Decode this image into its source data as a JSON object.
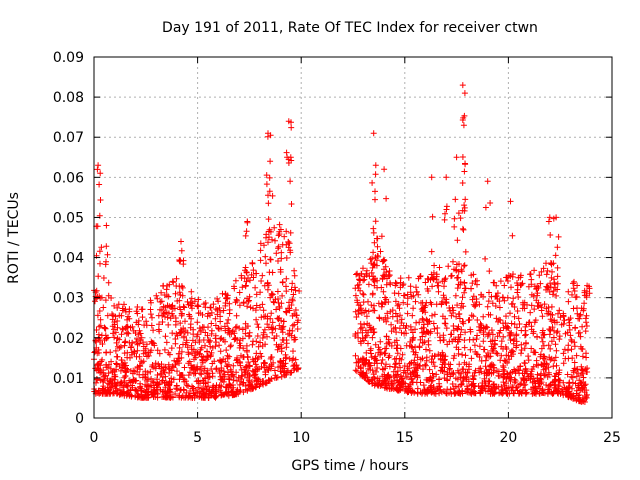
{
  "chart_data": {
    "type": "scatter",
    "title": "Day 191 of 2011, Rate Of TEC Index for receiver ctwn",
    "xlabel": "GPS time / hours",
    "ylabel": "ROTI / TECUs",
    "xlim": [
      0,
      25
    ],
    "ylim": [
      0,
      0.09
    ],
    "xticks": [
      0,
      5,
      10,
      15,
      20,
      25
    ],
    "yticks": [
      0,
      0.01,
      0.02,
      0.03,
      0.04,
      0.05,
      0.06,
      0.07,
      0.08,
      0.09
    ],
    "grid": true,
    "marker": "+",
    "marker_color": "#ff0000",
    "series": [
      {
        "segments_note_hours": [
          [
            0.0,
            9.9
          ],
          [
            12.6,
            23.8
          ]
        ],
        "peaks": [
          {
            "x": 0.2,
            "y": 0.063
          },
          {
            "x": 0.3,
            "y": 0.061
          },
          {
            "x": 0.6,
            "y": 0.048
          },
          {
            "x": 4.2,
            "y": 0.044
          },
          {
            "x": 7.4,
            "y": 0.049
          },
          {
            "x": 8.4,
            "y": 0.071
          },
          {
            "x": 8.5,
            "y": 0.064
          },
          {
            "x": 9.4,
            "y": 0.074
          },
          {
            "x": 9.5,
            "y": 0.065
          },
          {
            "x": 12.7,
            "y": 0.036
          },
          {
            "x": 13.5,
            "y": 0.071
          },
          {
            "x": 13.6,
            "y": 0.063
          },
          {
            "x": 14.0,
            "y": 0.062
          },
          {
            "x": 16.3,
            "y": 0.06
          },
          {
            "x": 17.0,
            "y": 0.06
          },
          {
            "x": 17.5,
            "y": 0.065
          },
          {
            "x": 17.8,
            "y": 0.083
          },
          {
            "x": 17.9,
            "y": 0.081
          },
          {
            "x": 17.85,
            "y": 0.073
          },
          {
            "x": 19.0,
            "y": 0.059
          },
          {
            "x": 20.1,
            "y": 0.054
          },
          {
            "x": 22.0,
            "y": 0.05
          },
          {
            "x": 22.3,
            "y": 0.05
          },
          {
            "x": 23.8,
            "y": 0.033
          }
        ],
        "band_envelope": [
          {
            "x": 0.0,
            "low": 0.006,
            "high": 0.032
          },
          {
            "x": 1.0,
            "low": 0.006,
            "high": 0.03
          },
          {
            "x": 2.0,
            "low": 0.005,
            "high": 0.028
          },
          {
            "x": 3.0,
            "low": 0.005,
            "high": 0.032
          },
          {
            "x": 4.0,
            "low": 0.005,
            "high": 0.035
          },
          {
            "x": 5.0,
            "low": 0.005,
            "high": 0.03
          },
          {
            "x": 6.0,
            "low": 0.005,
            "high": 0.03
          },
          {
            "x": 7.0,
            "low": 0.006,
            "high": 0.035
          },
          {
            "x": 8.0,
            "low": 0.008,
            "high": 0.045
          },
          {
            "x": 9.0,
            "low": 0.01,
            "high": 0.05
          },
          {
            "x": 9.8,
            "low": 0.012,
            "high": 0.04
          },
          {
            "x": 12.6,
            "low": 0.012,
            "high": 0.032
          },
          {
            "x": 13.5,
            "low": 0.008,
            "high": 0.045
          },
          {
            "x": 14.5,
            "low": 0.007,
            "high": 0.035
          },
          {
            "x": 15.5,
            "low": 0.006,
            "high": 0.035
          },
          {
            "x": 16.5,
            "low": 0.006,
            "high": 0.038
          },
          {
            "x": 17.5,
            "low": 0.006,
            "high": 0.04
          },
          {
            "x": 18.5,
            "low": 0.006,
            "high": 0.035
          },
          {
            "x": 19.5,
            "low": 0.006,
            "high": 0.035
          },
          {
            "x": 20.5,
            "low": 0.006,
            "high": 0.036
          },
          {
            "x": 21.5,
            "low": 0.006,
            "high": 0.04
          },
          {
            "x": 22.5,
            "low": 0.006,
            "high": 0.038
          },
          {
            "x": 23.5,
            "low": 0.004,
            "high": 0.032
          }
        ]
      }
    ]
  }
}
